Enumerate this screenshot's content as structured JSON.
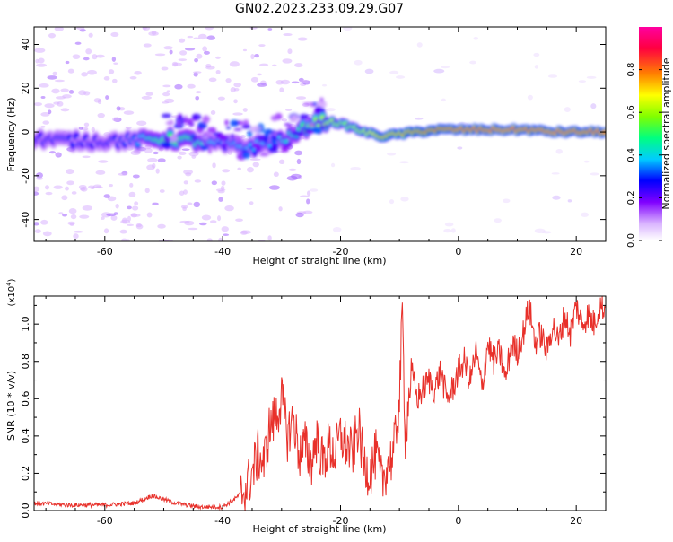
{
  "title": "GN02.2023.233.09.29.G07",
  "chart_data": [
    {
      "type": "heatmap",
      "xlabel": "Height of straight line (km)",
      "ylabel": "Frequency (Hz)",
      "xlim": [
        -72,
        25
      ],
      "ylim": [
        -50,
        48
      ],
      "xticks": [
        -60,
        -40,
        -20,
        0,
        20
      ],
      "xtick_labels": [
        "-60",
        "-40",
        "-20",
        "0",
        "20"
      ],
      "yticks": [
        -40,
        -20,
        0,
        20,
        40
      ],
      "ytick_labels": [
        "-40",
        "-20",
        "0",
        "20",
        "40"
      ],
      "colorbar": {
        "label": "Normalized spectral amplitude",
        "range": [
          0,
          1
        ],
        "ticks": [
          0,
          0.2,
          0.4,
          0.6,
          0.8
        ],
        "tick_labels": [
          "0.0",
          "0.2",
          "0.4",
          "0.6",
          "0.8"
        ],
        "colors": [
          "#ffffff",
          "#d9b3ff",
          "#8000ff",
          "#0000ff",
          "#00ccff",
          "#00ff80",
          "#80ff00",
          "#ffff00",
          "#ff8000",
          "#ff0040",
          "#ff00a0"
        ]
      },
      "ridge": {
        "x": [
          -72,
          -66,
          -60,
          -55,
          -50,
          -45,
          -40,
          -36,
          -32,
          -28,
          -25,
          -22,
          -19,
          -16,
          -13,
          -10,
          -7,
          -4,
          0,
          4,
          8,
          12,
          16,
          20,
          25
        ],
        "frequency": [
          -3,
          -4,
          -4,
          -4,
          -3,
          -4,
          -6,
          -7,
          -5,
          -2,
          4,
          5,
          3,
          0,
          -2,
          -1,
          0,
          1,
          1,
          1,
          1,
          1,
          0,
          0,
          0
        ],
        "amplitude": [
          0.3,
          0.32,
          0.3,
          0.35,
          0.55,
          0.5,
          0.35,
          0.4,
          0.4,
          0.45,
          0.6,
          0.65,
          0.6,
          0.65,
          0.75,
          0.75,
          0.8,
          0.85,
          0.9,
          0.9,
          0.92,
          0.9,
          0.92,
          0.9,
          0.9
        ]
      }
    },
    {
      "type": "line",
      "xlabel": "Height of straight line (km)",
      "ylabel": "SNR (10 * v/v)",
      "scale_label": "(x10",
      "scale_exp": "4",
      "scale_close": ")",
      "xlim": [
        -72,
        25
      ],
      "ylim": [
        0,
        1.15
      ],
      "xticks": [
        -60,
        -40,
        -20,
        0,
        20
      ],
      "xtick_labels": [
        "-60",
        "-40",
        "-20",
        "0",
        "20"
      ],
      "yticks": [
        0,
        0.2,
        0.4,
        0.6,
        0.8,
        1.0
      ],
      "ytick_labels": [
        "0.0",
        "0.2",
        "0.4",
        "0.6",
        "0.8",
        "1.0"
      ],
      "line_color": "#e8302a",
      "series": [
        {
          "x": [
            -72,
            -66,
            -60,
            -55,
            -52,
            -48,
            -44,
            -40,
            -38,
            -36,
            -35,
            -34,
            -33,
            -32,
            -31,
            -30,
            -29,
            -28,
            -27,
            -26,
            -25,
            -24,
            -23,
            -22,
            -21,
            -20,
            -19,
            -18,
            -17,
            -16,
            -15,
            -14,
            -13,
            -12,
            -11,
            -10,
            -9.5,
            -9,
            -8,
            -7,
            -6,
            -5,
            -4,
            -3,
            -2,
            -1,
            0,
            1,
            2,
            3,
            4,
            5,
            6,
            7,
            8,
            9,
            10,
            11,
            12,
            13,
            14,
            15,
            16,
            17,
            18,
            19,
            20,
            21,
            22,
            23,
            24,
            25
          ],
          "y": [
            0.04,
            0.03,
            0.03,
            0.04,
            0.08,
            0.04,
            0.02,
            0.02,
            0.06,
            0.12,
            0.2,
            0.3,
            0.25,
            0.45,
            0.5,
            0.6,
            0.4,
            0.5,
            0.3,
            0.35,
            0.25,
            0.4,
            0.25,
            0.35,
            0.3,
            0.4,
            0.35,
            0.3,
            0.45,
            0.25,
            0.2,
            0.3,
            0.15,
            0.25,
            0.3,
            0.6,
            1.05,
            0.4,
            0.75,
            0.6,
            0.65,
            0.7,
            0.65,
            0.75,
            0.6,
            0.65,
            0.75,
            0.8,
            0.7,
            0.85,
            0.65,
            0.9,
            0.8,
            0.85,
            0.7,
            0.9,
            0.85,
            0.95,
            1.1,
            0.9,
            0.95,
            0.85,
            1.0,
            0.9,
            1.05,
            0.95,
            1.1,
            1.0,
            1.05,
            1.0,
            1.1,
            1.08
          ]
        }
      ]
    }
  ]
}
